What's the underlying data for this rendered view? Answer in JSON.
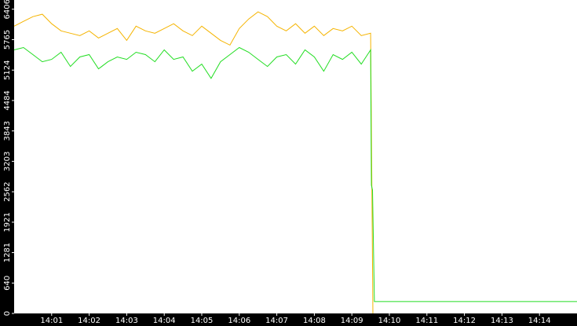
{
  "chart_data": {
    "type": "line",
    "xlim": [
      0,
      15
    ],
    "ylim": [
      0,
      6600
    ],
    "xticks": [
      {
        "value": 1,
        "label": "14:01"
      },
      {
        "value": 2,
        "label": "14:02"
      },
      {
        "value": 3,
        "label": "14:03"
      },
      {
        "value": 4,
        "label": "14:04"
      },
      {
        "value": 5,
        "label": "14:05"
      },
      {
        "value": 6,
        "label": "14:06"
      },
      {
        "value": 7,
        "label": "14:07"
      },
      {
        "value": 8,
        "label": "14:08"
      },
      {
        "value": 9,
        "label": "14:09"
      },
      {
        "value": 10,
        "label": "14:10"
      },
      {
        "value": 11,
        "label": "14:11"
      },
      {
        "value": 12,
        "label": "14:12"
      },
      {
        "value": 13,
        "label": "14:13"
      },
      {
        "value": 14,
        "label": "14:14"
      }
    ],
    "yticks": [
      0,
      640,
      1281,
      1921,
      2562,
      3203,
      3843,
      4484,
      5124,
      5765,
      6406
    ],
    "series": [
      {
        "color": "#f5b400",
        "x": [
          0,
          0.25,
          0.5,
          0.75,
          1,
          1.25,
          1.5,
          1.75,
          2,
          2.25,
          2.5,
          2.75,
          3,
          3.25,
          3.5,
          3.75,
          4,
          4.25,
          4.5,
          4.75,
          5,
          5.25,
          5.5,
          5.75,
          6,
          6.25,
          6.5,
          6.75,
          7,
          7.25,
          7.5,
          7.75,
          8,
          8.25,
          8.5,
          8.75,
          9,
          9.25,
          9.5,
          9.56
        ],
        "values": [
          6050,
          6150,
          6250,
          6300,
          6100,
          5950,
          5900,
          5850,
          5950,
          5800,
          5900,
          6000,
          5750,
          6050,
          5950,
          5900,
          6000,
          6100,
          5950,
          5850,
          6050,
          5900,
          5750,
          5650,
          6000,
          6200,
          6350,
          6250,
          6050,
          5950,
          6100,
          5900,
          6050,
          5850,
          6000,
          5950,
          6050,
          5850,
          5900,
          0
        ]
      },
      {
        "color": "#22dd22",
        "x": [
          0,
          0.25,
          0.5,
          0.75,
          1,
          1.25,
          1.5,
          1.75,
          2,
          2.25,
          2.5,
          2.75,
          3,
          3.25,
          3.5,
          3.75,
          4,
          4.25,
          4.5,
          4.75,
          5,
          5.25,
          5.5,
          5.75,
          6,
          6.25,
          6.5,
          6.75,
          7,
          7.25,
          7.5,
          7.75,
          8,
          8.25,
          8.5,
          8.75,
          9,
          9.25,
          9.5,
          9.52,
          9.55,
          9.6,
          15
        ],
        "values": [
          5550,
          5600,
          5450,
          5300,
          5350,
          5500,
          5200,
          5400,
          5450,
          5150,
          5300,
          5400,
          5350,
          5500,
          5450,
          5300,
          5550,
          5350,
          5400,
          5100,
          5250,
          4950,
          5300,
          5450,
          5600,
          5500,
          5350,
          5200,
          5400,
          5450,
          5250,
          5550,
          5400,
          5100,
          5450,
          5350,
          5500,
          5250,
          5550,
          2700,
          2600,
          250,
          250
        ]
      }
    ]
  }
}
